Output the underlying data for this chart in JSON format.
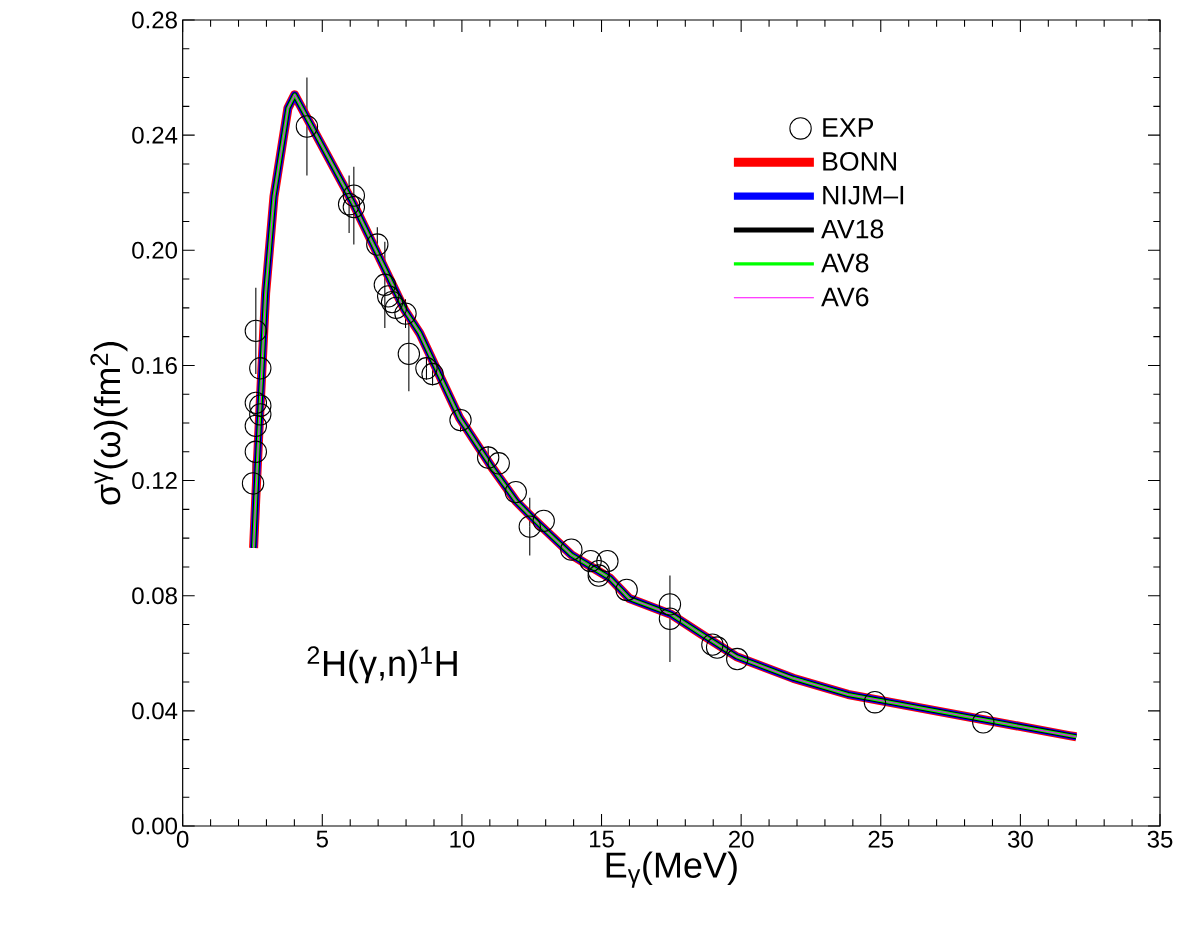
{
  "chart_data": {
    "type": "line",
    "xlabel": "E$_{γ}$(MeV)",
    "ylabel": "σ$^{γ}$(ω)(fm$^{2}$)",
    "xlim": [
      0,
      35
    ],
    "ylim": [
      0,
      0.28
    ],
    "xticks": [
      0,
      5,
      10,
      15,
      20,
      25,
      30,
      35
    ],
    "yticks": [
      {
        "value": 0,
        "label": "0.00"
      },
      {
        "value": 0.04,
        "label": "0.04"
      },
      {
        "value": 0.08,
        "label": "0.08"
      },
      {
        "value": 0.12,
        "label": "0.12"
      },
      {
        "value": 0.16,
        "label": "0.16"
      },
      {
        "value": 0.2,
        "label": "0.20"
      },
      {
        "value": 0.24,
        "label": "0.24"
      },
      {
        "value": 0.28,
        "label": "0.28"
      }
    ],
    "legend": "top right",
    "annotations": [
      "$^{2}$H(γ,n)$^{1}$H"
    ],
    "series": [
      {
        "name": "EXP",
        "type": "scatter",
        "marker": "circle",
        "color": "#000000",
        "x": [
          2.52,
          2.62,
          2.62,
          2.62,
          2.62,
          2.78,
          2.78,
          2.78,
          4.45,
          5.96,
          6.13,
          6.13,
          6.97,
          7.24,
          7.36,
          7.5,
          7.64,
          7.98,
          8.1,
          8.73,
          8.95,
          9.95,
          10.94,
          11.32,
          11.93,
          12.43,
          12.93,
          13.92,
          14.61,
          14.9,
          14.9,
          15.21,
          15.9,
          17.45,
          17.45,
          18.97,
          19.14,
          19.86,
          24.79,
          28.67
        ],
        "values": [
          0.119,
          0.13,
          0.139,
          0.147,
          0.172,
          0.143,
          0.146,
          0.159,
          0.243,
          0.216,
          0.215,
          0.219,
          0.202,
          0.188,
          0.184,
          0.182,
          0.18,
          0.178,
          0.164,
          0.159,
          0.157,
          0.141,
          0.128,
          0.126,
          0.116,
          0.104,
          0.106,
          0.096,
          0.092,
          0.0885,
          0.087,
          0.092,
          0.082,
          0.077,
          0.072,
          0.063,
          0.062,
          0.058,
          0.043,
          0.036
        ],
        "errors": [
          0.008,
          null,
          null,
          null,
          0.015,
          null,
          null,
          0.006,
          0.017,
          0.01,
          [
            0.202,
            0.229
          ],
          null,
          0.006,
          0.015,
          null,
          null,
          null,
          0.005,
          0.013,
          0.004,
          0.004,
          0.004,
          0.004,
          null,
          null,
          0.01,
          null,
          null,
          null,
          null,
          null,
          null,
          null,
          null,
          [
            0.057,
            0.087
          ],
          null,
          null,
          null,
          null,
          null
        ]
      },
      {
        "name": "BONN",
        "type": "line",
        "color": "#ff0000",
        "x": [
          2.54,
          2.62,
          2.76,
          2.97,
          3.27,
          3.77,
          4.01,
          6.1,
          7.95,
          8.49,
          9.92,
          11.06,
          11.95,
          12.54,
          13.92,
          15.3,
          16.0,
          17.5,
          18.52,
          19.84,
          21.87,
          23.83,
          31.75,
          32.0
        ],
        "values": [
          0.0966,
          0.1144,
          0.1435,
          0.185,
          0.2187,
          0.2494,
          0.254,
          0.2164,
          0.1793,
          0.1712,
          0.1417,
          0.1248,
          0.1127,
          0.1069,
          0.0942,
          0.0861,
          0.079,
          0.0735,
          0.067,
          0.0588,
          0.0513,
          0.0457,
          0.0314,
          0.031
        ]
      },
      {
        "name": "NIJM–I",
        "type": "line",
        "color": "#0000ff",
        "x": [
          2.54,
          2.62,
          2.76,
          2.97,
          3.27,
          3.77,
          4.01,
          6.1,
          7.95,
          8.49,
          9.92,
          11.06,
          11.95,
          12.54,
          13.92,
          15.3,
          16.0,
          17.5,
          18.52,
          19.84,
          21.87,
          23.83,
          31.75,
          32.0
        ],
        "values": [
          0.0966,
          0.1144,
          0.1435,
          0.185,
          0.2187,
          0.2494,
          0.254,
          0.2164,
          0.1793,
          0.1712,
          0.1417,
          0.1248,
          0.1127,
          0.1069,
          0.0942,
          0.0861,
          0.079,
          0.0735,
          0.067,
          0.0588,
          0.0513,
          0.0457,
          0.0314,
          0.031
        ]
      },
      {
        "name": "AV18",
        "type": "line",
        "color": "#000000",
        "x": [
          2.54,
          2.62,
          2.76,
          2.97,
          3.27,
          3.77,
          4.01,
          6.1,
          7.95,
          8.49,
          9.92,
          11.06,
          11.95,
          12.54,
          13.92,
          15.3,
          16.0,
          17.5,
          18.52,
          19.84,
          21.87,
          23.83,
          31.75,
          32.0
        ],
        "values": [
          0.0966,
          0.1144,
          0.1435,
          0.185,
          0.2187,
          0.2494,
          0.254,
          0.2164,
          0.1793,
          0.1712,
          0.1417,
          0.1248,
          0.1127,
          0.1069,
          0.0942,
          0.0861,
          0.079,
          0.0735,
          0.067,
          0.0588,
          0.0513,
          0.0457,
          0.0314,
          0.031
        ]
      },
      {
        "name": "AV8",
        "type": "line",
        "color": "#00ff00",
        "x": [
          2.54,
          2.62,
          2.76,
          2.97,
          3.27,
          3.77,
          4.01,
          6.1,
          7.95,
          8.49,
          9.92,
          11.06,
          11.95,
          12.54,
          13.92,
          15.3,
          16.0,
          17.5,
          18.52,
          19.84,
          21.87,
          23.83,
          31.75,
          32.0
        ],
        "values": [
          0.0966,
          0.1144,
          0.1435,
          0.185,
          0.2187,
          0.2494,
          0.254,
          0.2164,
          0.1793,
          0.1712,
          0.1417,
          0.1248,
          0.1127,
          0.1069,
          0.0942,
          0.0861,
          0.079,
          0.0735,
          0.067,
          0.0588,
          0.0513,
          0.0457,
          0.0314,
          0.031
        ]
      },
      {
        "name": "AV6",
        "type": "line",
        "color": "#ff00ff",
        "x": [
          2.54,
          2.62,
          2.76,
          2.97,
          3.27,
          3.77,
          4.01,
          6.1,
          7.95,
          8.49,
          9.92,
          11.06,
          11.95,
          12.54,
          13.92,
          15.3,
          16.0,
          17.5,
          18.52,
          19.84,
          21.87,
          23.83,
          31.75,
          32.0
        ],
        "values": [
          0.0966,
          0.1144,
          0.1435,
          0.185,
          0.2187,
          0.2494,
          0.254,
          0.2164,
          0.1793,
          0.1712,
          0.1417,
          0.1248,
          0.1127,
          0.1069,
          0.0942,
          0.0861,
          0.079,
          0.0735,
          0.067,
          0.0588,
          0.0513,
          0.0457,
          0.0314,
          0.031
        ]
      }
    ]
  }
}
